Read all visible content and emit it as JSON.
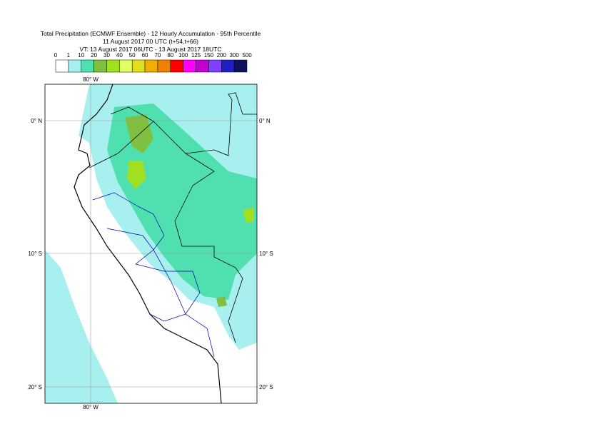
{
  "header": {
    "title": [
      "Total Precipitation (ECMWF Ensemble) - 12 Hourly Accumulation - 95th Percentile",
      "11 August 2017 00 UTC (t+54,t+66)",
      "VT: 13 August 2017 06UTC - 13 August 2017 18UTC"
    ]
  },
  "colorbar": {
    "labels": [
      0,
      1,
      10,
      20,
      30,
      40,
      50,
      60,
      70,
      80,
      100,
      125,
      150,
      200,
      300,
      500
    ],
    "colors": [
      "#ffffff",
      "#a8f0f0",
      "#50e0b0",
      "#80c040",
      "#a0e020",
      "#e0ff60",
      "#e0e020",
      "#f0b000",
      "#f08000",
      "#ff0000",
      "#ff00ff",
      "#c000d0",
      "#8040ff",
      "#2020c0",
      "#101060"
    ]
  },
  "map": {
    "lon_labels": [
      "80° W"
    ],
    "lat_labels": [
      "0° N",
      "10° S",
      "20° S"
    ]
  }
}
